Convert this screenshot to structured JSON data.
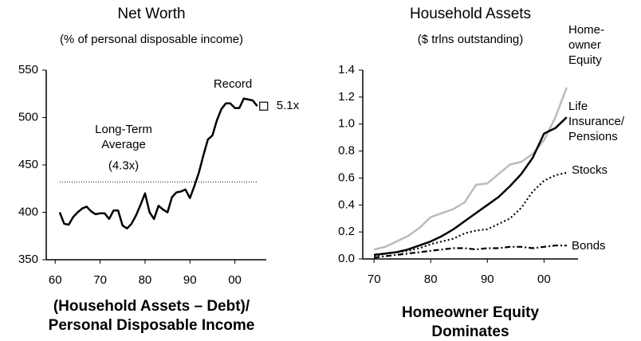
{
  "chart_data": [
    {
      "type": "line",
      "title": "Net Worth",
      "subtitle": "(% of personal disposable income)",
      "caption": "(Household Assets – Debt)/ Personal Disposable Income",
      "x": [
        1961,
        1962,
        1963,
        1964,
        1965,
        1966,
        1967,
        1968,
        1969,
        1970,
        1971,
        1972,
        1973,
        1974,
        1975,
        1976,
        1977,
        1978,
        1979,
        1980,
        1981,
        1982,
        1983,
        1984,
        1985,
        1986,
        1987,
        1988,
        1989,
        1990,
        1991,
        1992,
        1993,
        1994,
        1995,
        1996,
        1997,
        1998,
        1999,
        2000,
        2001,
        2002,
        2003,
        2004,
        2005
      ],
      "series": [
        {
          "name": "Net Worth",
          "color": "#000000",
          "dash": "solid",
          "values": [
            400,
            388,
            387,
            395,
            400,
            404,
            406,
            401,
            398,
            399,
            399,
            393,
            402,
            402,
            386,
            383,
            388,
            397,
            408,
            420,
            400,
            393,
            407,
            403,
            400,
            416,
            421,
            422,
            424,
            415,
            428,
            442,
            460,
            477,
            481,
            497,
            509,
            515,
            515,
            510,
            510,
            520,
            519,
            518,
            512
          ]
        }
      ],
      "average": 432,
      "average_label": "Long-Term Average",
      "average_value_label": "(4.3x)",
      "record_label": "Record",
      "last_value_label": "5.1x",
      "xlim": [
        1958,
        2007
      ],
      "xticks": [
        {
          "value": 1960,
          "label": "60"
        },
        {
          "value": 1970,
          "label": "70"
        },
        {
          "value": 1980,
          "label": "80"
        },
        {
          "value": 1990,
          "label": "90"
        },
        {
          "value": 2000,
          "label": "00"
        }
      ],
      "ylim": [
        350,
        550
      ],
      "yticks": [
        350,
        400,
        450,
        500,
        550
      ]
    },
    {
      "type": "line",
      "title": "Household Assets",
      "subtitle": "($ trlns outstanding)",
      "caption": "Homeowner Equity Dominates",
      "x": [
        1970,
        1972,
        1974,
        1976,
        1978,
        1980,
        1982,
        1984,
        1986,
        1988,
        1990,
        1992,
        1994,
        1996,
        1998,
        2000,
        2002,
        2004
      ],
      "series": [
        {
          "name": "Home-owner Equity",
          "color": "#bbbbbb",
          "dash": "solid",
          "values": [
            0.07,
            0.09,
            0.13,
            0.17,
            0.23,
            0.31,
            0.34,
            0.37,
            0.42,
            0.55,
            0.56,
            0.63,
            0.7,
            0.72,
            0.78,
            0.88,
            1.05,
            1.27
          ]
        },
        {
          "name": "Life Insurance/ Pensions",
          "color": "#000000",
          "dash": "solid",
          "values": [
            0.03,
            0.04,
            0.05,
            0.07,
            0.1,
            0.13,
            0.17,
            0.22,
            0.28,
            0.34,
            0.4,
            0.46,
            0.54,
            0.63,
            0.75,
            0.93,
            0.97,
            1.05
          ]
        },
        {
          "name": "Stocks",
          "color": "#000000",
          "dash": "dotted",
          "values": [
            0.02,
            0.04,
            0.05,
            0.06,
            0.08,
            0.11,
            0.13,
            0.15,
            0.19,
            0.21,
            0.22,
            0.26,
            0.3,
            0.38,
            0.5,
            0.58,
            0.62,
            0.64
          ]
        },
        {
          "name": "Bonds",
          "color": "#000000",
          "dash": "dashdot",
          "values": [
            0.01,
            0.02,
            0.03,
            0.04,
            0.05,
            0.06,
            0.07,
            0.08,
            0.08,
            0.07,
            0.08,
            0.08,
            0.09,
            0.09,
            0.08,
            0.09,
            0.1,
            0.1
          ]
        }
      ],
      "xlim": [
        1968,
        2006
      ],
      "xticks": [
        {
          "value": 1970,
          "label": "70"
        },
        {
          "value": 1980,
          "label": "80"
        },
        {
          "value": 1990,
          "label": "90"
        },
        {
          "value": 2000,
          "label": "00"
        }
      ],
      "ylim": [
        0,
        1.4
      ],
      "yticks": [
        {
          "value": 0,
          "label": "0.0"
        },
        0.2,
        0.4,
        0.6,
        0.8,
        {
          "value": 1,
          "label": "1.0"
        },
        1.2,
        1.4
      ]
    }
  ]
}
